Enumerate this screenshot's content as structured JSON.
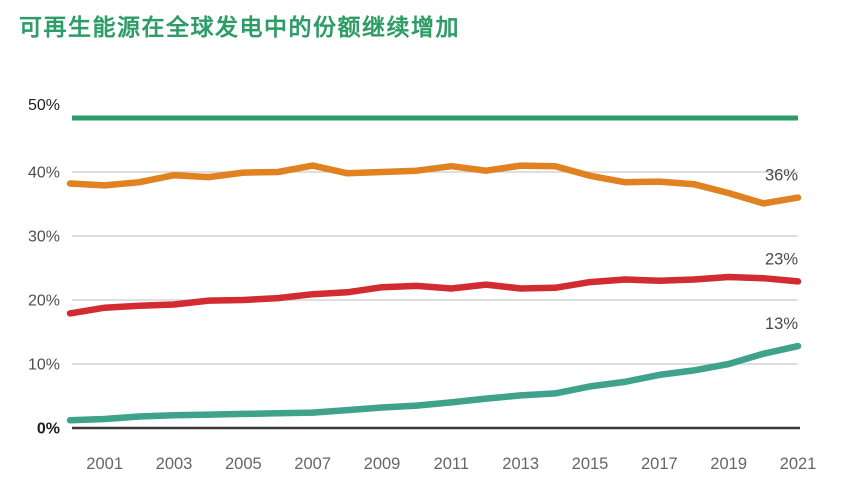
{
  "title": "可再生能源在全球发电中的份额继续增加",
  "colors": {
    "title": "#2E9C67",
    "highlight_line": "#2E9C67",
    "gridline": "#CCCCCC",
    "baseline": "#3A3A3A",
    "axis_label": "#4F4F4F",
    "axis_label_strong": "#1F1F1F",
    "x_tick_label": "#666666",
    "end_label": "#4A4A4A",
    "background": "#FFFFFF"
  },
  "chart_data": {
    "type": "line",
    "title": "可再生能源在全球发电中的份额继续增加",
    "xlabel": "",
    "ylabel": "",
    "ylim": [
      0,
      50
    ],
    "grid": "horizontal",
    "legend": "none",
    "x": [
      2000,
      2001,
      2002,
      2003,
      2004,
      2005,
      2006,
      2007,
      2008,
      2009,
      2010,
      2011,
      2012,
      2013,
      2014,
      2015,
      2016,
      2017,
      2018,
      2019,
      2020,
      2021
    ],
    "x_tick_labels": [
      "2001",
      "2003",
      "2005",
      "2007",
      "2009",
      "2011",
      "2013",
      "2015",
      "2017",
      "2019",
      "2021"
    ],
    "y_ticks": [
      {
        "value": 0,
        "label": "0%"
      },
      {
        "value": 10,
        "label": "10%"
      },
      {
        "value": 20,
        "label": "20%"
      },
      {
        "value": 30,
        "label": "30%"
      },
      {
        "value": 40,
        "label": "40%"
      },
      {
        "value": 50,
        "label": "50%"
      }
    ],
    "series": [
      {
        "name": "orange",
        "color": "#E0821F",
        "end_label": "36%",
        "values": [
          38.2,
          37.9,
          38.4,
          39.5,
          39.2,
          39.9,
          40.0,
          41.0,
          39.8,
          40.0,
          40.2,
          40.9,
          40.2,
          41.0,
          40.9,
          39.4,
          38.4,
          38.5,
          38.1,
          36.7,
          35.1,
          36.0
        ]
      },
      {
        "name": "red",
        "color": "#D22B31",
        "end_label": "23%",
        "values": [
          17.9,
          18.8,
          19.1,
          19.3,
          19.9,
          20.0,
          20.3,
          20.9,
          21.2,
          22.0,
          22.2,
          21.8,
          22.4,
          21.8,
          21.9,
          22.8,
          23.2,
          23.0,
          23.2,
          23.6,
          23.4,
          22.9
        ]
      },
      {
        "name": "teal",
        "color": "#3EA28C",
        "end_label": "13%",
        "values": [
          1.2,
          1.4,
          1.8,
          2.0,
          2.1,
          2.2,
          2.3,
          2.4,
          2.8,
          3.2,
          3.5,
          4.0,
          4.6,
          5.1,
          5.4,
          6.5,
          7.2,
          8.3,
          9.0,
          10.0,
          11.6,
          12.8
        ]
      }
    ]
  }
}
